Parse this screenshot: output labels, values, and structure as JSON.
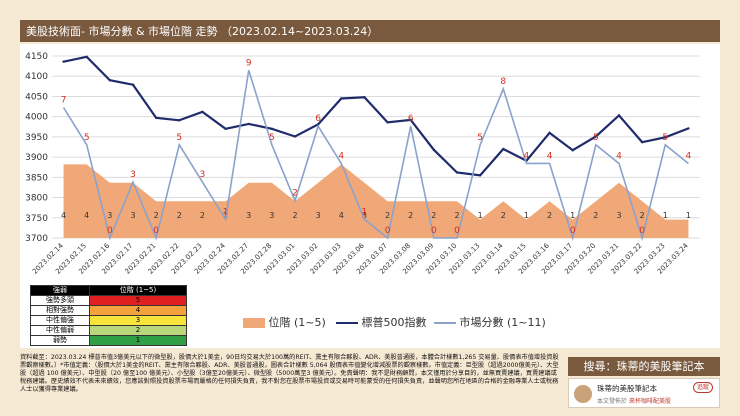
{
  "header": {
    "title": "美股技術面- 市場分數 & 市場位階 走勢 （2023.02.14~2023.03.24）"
  },
  "chart_data": {
    "type": "combo",
    "title": "美股技術面- 市場分數 & 市場位階 走勢 （2023.02.14~2023.03.24）",
    "categories": [
      "2023.02.14",
      "2023.02.15",
      "2023.02.16",
      "2023.02.17",
      "2023.02.21",
      "2023.02.22",
      "2023.02.23",
      "2023.02.24",
      "2023.02.27",
      "2023.02.28",
      "2023.03.01",
      "2023.03.02",
      "2023.03.03",
      "2023.03.06",
      "2023.03.07",
      "2023.03.08",
      "2023.03.09",
      "2023.03.10",
      "2023.03.13",
      "2023.03.14",
      "2023.03.15",
      "2023.03.16",
      "2023.03.17",
      "2023.03.20",
      "2023.03.21",
      "2023.03.22",
      "2023.03.23",
      "2023.03.24"
    ],
    "y_axis": {
      "min": 3700,
      "max": 4150,
      "step": 50,
      "tick_labels": [
        "3700",
        "3750",
        "3800",
        "3850",
        "3900",
        "3950",
        "4000",
        "4050",
        "4100",
        "4150"
      ]
    },
    "series": [
      {
        "name": "位階 (1~5)",
        "type": "area",
        "color": "#f0a878",
        "values": [
          4,
          4,
          3,
          3,
          2,
          2,
          2,
          2,
          3,
          3,
          2,
          3,
          4,
          3,
          2,
          2,
          2,
          2,
          1,
          2,
          1,
          2,
          1,
          2,
          3,
          2,
          1,
          1
        ]
      },
      {
        "name": "標普500指數",
        "type": "line",
        "color": "#1f2b6b",
        "values": [
          4136,
          4148,
          4090,
          4079,
          3997,
          3991,
          4012,
          3970,
          3982,
          3970,
          3951,
          3981,
          4045,
          4048,
          3986,
          3992,
          3918,
          3862,
          3855,
          3920,
          3891,
          3960,
          3917,
          3951,
          4003,
          3937,
          3949,
          3971
        ]
      },
      {
        "name": "市場分數 (1~11)",
        "type": "line",
        "color": "#8aa2cc",
        "values": [
          7,
          5,
          0,
          3,
          0,
          5,
          3,
          1,
          9,
          5,
          2,
          6,
          4,
          1,
          0,
          6,
          0,
          0,
          5,
          8,
          4,
          4,
          0,
          5,
          4,
          0,
          5,
          4
        ]
      }
    ],
    "legend": {
      "position": "bottom"
    }
  },
  "legend": {
    "area_label": "位階 (1~5)",
    "sp500_label": "標普500指數",
    "score_label": "市場分數 (1~11)"
  },
  "level_table": {
    "header": [
      "強弱",
      "位階 (1~5)"
    ],
    "rows": [
      {
        "label": "強勢多頭",
        "value": "5",
        "color": "#e02020"
      },
      {
        "label": "相對強勢",
        "value": "4",
        "color": "#f4a23c"
      },
      {
        "label": "中性偏強",
        "value": "3",
        "color": "#f7e33a"
      },
      {
        "label": "中性偏弱",
        "value": "2",
        "color": "#b9d67a"
      },
      {
        "label": "弱勢",
        "value": "1",
        "color": "#2f9e45"
      }
    ]
  },
  "footer": {
    "text": "資料截至：2023.03.24 標普市值3億美元以下的微型股，股價大於1美金，90日均交易大於100萬的REIT、黨主有限合夥股、ADR、美股普通股，本體合計樣數1,265 交易量、股價表市值增投資股票觀察樣數。）*市值定義：（股價大於1美金的REIT、黨主有限合夥股、ADR、美股普通股，圖表合計樣數 5,064 股價表市值變化增減股票的觀察樣數。市值定義：巨型股（超過2000億美元）、大型股（超過 100 億美元）、中型股（20 億至100 億美元）、小型股（3億至20億美元）、微型股（5000萬至3 億美元）。免責聲明：我不是財務顧問，本文僅用於分享目的，並無買賣建議，買賣建議或稅務建議。歷史績效不代表未來績效，您應該對照投資股票市場而嚴格的任何損失負責，我不對您在股票市場投資或交易時可能蒙受的任何損失負責，並聲明您所在地區的合格的金融專業人士或稅務人士以獲得專業建議。"
  },
  "brand": {
    "search_label": "搜尋：珠蒂的美股筆記本",
    "name": "珠蒂的美股筆記本",
    "follow_label": "追蹤",
    "meta_prefix": "本文發佈於",
    "meta_link": "來杯咖啡配美股"
  }
}
